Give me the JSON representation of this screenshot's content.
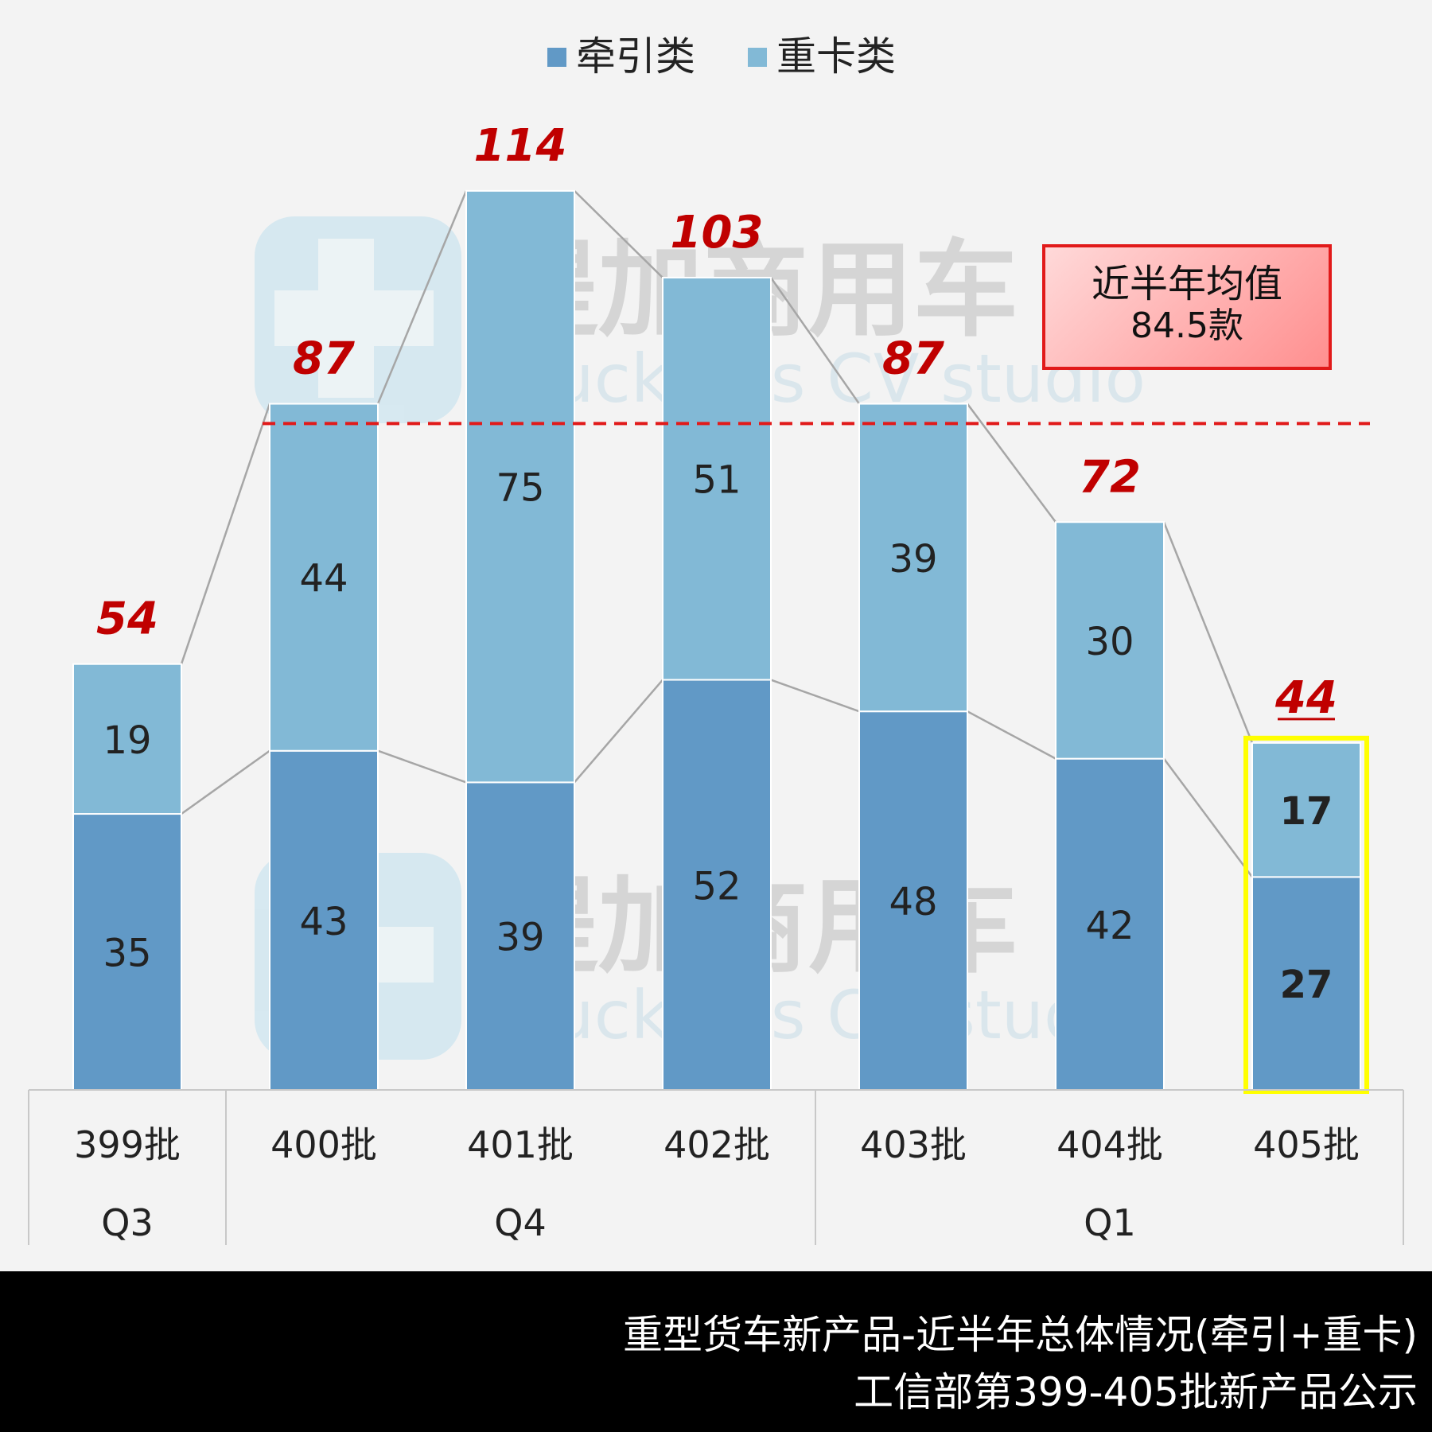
{
  "chart_data": {
    "type": "bar",
    "stacked": true,
    "categories": [
      "399批",
      "400批",
      "401批",
      "402批",
      "403批",
      "404批",
      "405批"
    ],
    "groups": [
      {
        "label": "Q3",
        "categories": [
          "399批"
        ]
      },
      {
        "label": "Q4",
        "categories": [
          "400批",
          "401批",
          "402批"
        ]
      },
      {
        "label": "Q1",
        "categories": [
          "403批",
          "404批",
          "405批"
        ]
      }
    ],
    "series": [
      {
        "name": "牵引类",
        "values": [
          35,
          43,
          39,
          52,
          48,
          42,
          27
        ],
        "color": "#6199c6"
      },
      {
        "name": "重卡类",
        "values": [
          19,
          44,
          75,
          51,
          39,
          30,
          17
        ],
        "color": "#82b9d6"
      }
    ],
    "totals": [
      54,
      87,
      114,
      103,
      87,
      72,
      44
    ],
    "ylim": [
      0,
      125
    ],
    "grid": false,
    "legend_position": "top",
    "highlight_category": "405批",
    "highlight_color": "#ffff00",
    "average": {
      "value": 84.5,
      "line_color": "#e11a1a",
      "label_line1": "近半年均值",
      "label_line2": "84.5款"
    },
    "total_label_color": "#c00000"
  },
  "watermark": {
    "brand_text": "提加商用车",
    "sub_text": "TruckPlus CV studio"
  },
  "footer": {
    "line1": "重型货车新产品-近半年总体情况(牵引+重卡)",
    "line2": "工信部第399-405批新产品公示"
  }
}
